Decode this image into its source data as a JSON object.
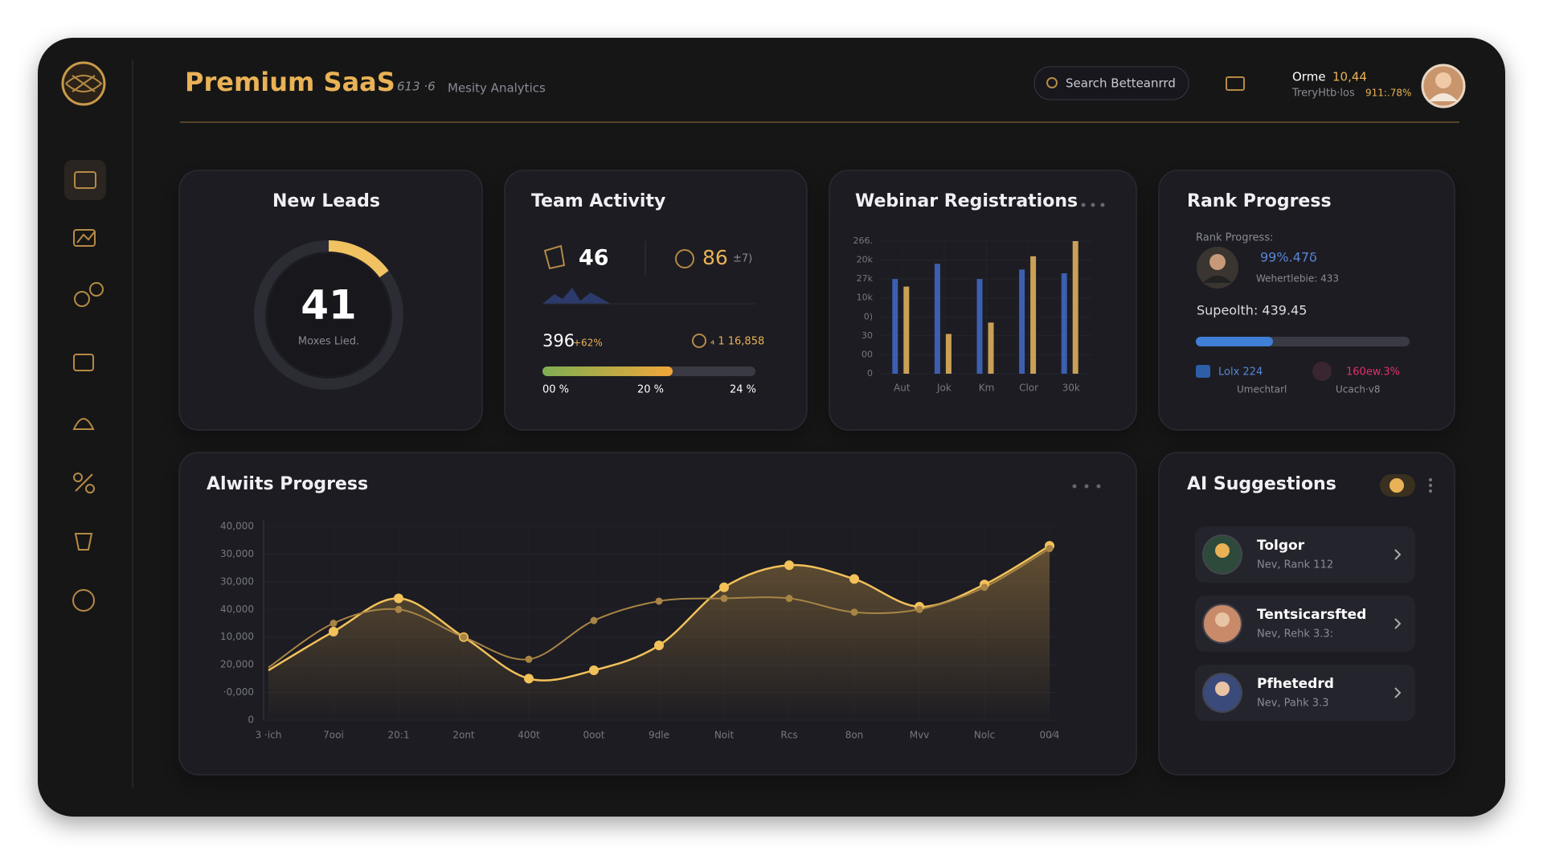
{
  "header": {
    "title": "Premium SaaS",
    "badge": "613 ·6",
    "subtitle": "Mesity Analytics",
    "search": "Search Betteanrrd",
    "user_name": "Orme",
    "user_value": "10,44",
    "user_sub": "TreryHtb·los",
    "user_pct": "911:.78%"
  },
  "new_leads": {
    "title": "New Leads",
    "value": 41,
    "caption": "Moxes Lied."
  },
  "team_activity": {
    "title": "Team Activity",
    "stat1": 46,
    "stat2": 86,
    "stat2_note": "±7)",
    "total": 396,
    "total_change": "+62%",
    "amount": "₄ 1 16,858",
    "scale": [
      "00 %",
      "20 %",
      "24 %"
    ]
  },
  "webinar": {
    "title": "Webinar Registrations",
    "categories": [
      "Aut",
      "Jok",
      "Km",
      "Clor",
      "30k"
    ],
    "series": [
      {
        "color": "#3d5fb0",
        "values": [
          5,
          5.8,
          5,
          5.5,
          5.3
        ]
      },
      {
        "color": "#c9a056",
        "values": [
          4.6,
          2.1,
          2.7,
          6.2,
          7
        ]
      }
    ],
    "ylim": [
      0,
      7
    ],
    "yticks": [
      0,
      {
        "value": 1,
        "label": "00"
      },
      {
        "value": 2,
        "label": "30"
      },
      {
        "value": 3,
        "label": "0)"
      },
      {
        "value": 4,
        "label": "10k"
      },
      {
        "value": 5,
        "label": "27k"
      },
      {
        "value": 6,
        "label": "20k"
      },
      {
        "value": 7,
        "label": "266."
      }
    ]
  },
  "rank_progress": {
    "title": "Rank Progress",
    "label": "Rank Progress:",
    "score": "99%.47δ",
    "detail": "Wehertlebie: 433",
    "metric": "Supeolth: 439.45",
    "left_value": "Lolx 224",
    "left_label": "Umechtarl",
    "right_value": "160ew.3%",
    "right_label": "Ucach·v8"
  },
  "progress_chart": {
    "title": "Alwiits Progress",
    "categories": [
      "3 ·ich",
      "7ooi",
      "20:1",
      "2ont",
      "400t",
      "0oot",
      "9dle",
      "Noit",
      "Rcs",
      "8on",
      "Mvv",
      "Nolc",
      "00⁄4"
    ],
    "series": [
      {
        "color": "#f2c15a",
        "values": [
          1.8,
          3.2,
          4.4,
          3.0,
          1.5,
          1.8,
          2.7,
          4.8,
          5.6,
          5.1,
          4.1,
          4.9,
          6.3
        ]
      },
      {
        "color": "#a88445",
        "values": [
          1.9,
          3.5,
          4.0,
          3.0,
          2.2,
          3.6,
          4.3,
          4.4,
          4.4,
          3.9,
          4.0,
          4.8,
          6.2
        ]
      }
    ],
    "ylim": [
      0,
      7
    ],
    "yticks": [
      0,
      {
        "value": 1,
        "label": "·0,000"
      },
      {
        "value": 2,
        "label": "20,000"
      },
      {
        "value": 3,
        "label": "10,000"
      },
      {
        "value": 4,
        "label": "40,000"
      },
      {
        "value": 5,
        "label": "30,000"
      },
      {
        "value": 6,
        "label": "30,000"
      },
      {
        "value": 7,
        "label": "40,000"
      }
    ]
  },
  "ai_suggestions": {
    "title": "AI Suggestions",
    "items": [
      {
        "name": "Tolgor",
        "detail": "Nev, Rank 112"
      },
      {
        "name": "Tentsicarsfted",
        "detail": "Nev, Rehk 3.3:"
      },
      {
        "name": "Pfhetedrd",
        "detail": "Nev, Pahk 3.3"
      }
    ]
  }
}
